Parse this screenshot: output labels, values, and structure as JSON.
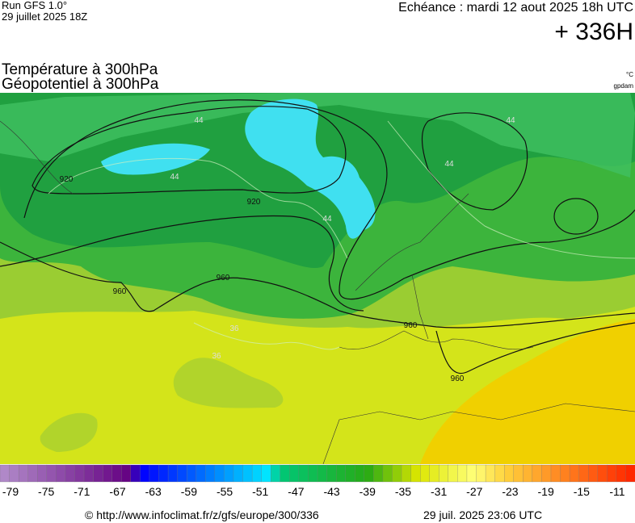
{
  "header": {
    "run": "Run GFS 1.0°",
    "run_date": "29 juillet 2025 18Z",
    "valid": "Echéance : mardi 12 aout 2025 18h UTC",
    "lead": "+ 336H",
    "title_line1": "Température à 300hPa",
    "title_line2": "Géopotentiel à 300hPa",
    "unit_temp": "°C",
    "unit_geo": "gpdam"
  },
  "map": {
    "contour_labels": [
      "920",
      "920",
      "960",
      "960",
      "960",
      "960",
      "44",
      "44",
      "44",
      "44",
      "44",
      "36",
      "36"
    ]
  },
  "colorbar": {
    "ticks": [
      -79,
      -75,
      -71,
      -67,
      -63,
      -59,
      -55,
      -51,
      -47,
      -43,
      -39,
      -35,
      -31,
      -27,
      -23,
      -19,
      -15,
      -11
    ]
  },
  "footer": {
    "url": "© http://www.infoclimat.fr/z/gfs/europe/300/336",
    "timestamp": "29 juil. 2025 23:06 UTC"
  }
}
